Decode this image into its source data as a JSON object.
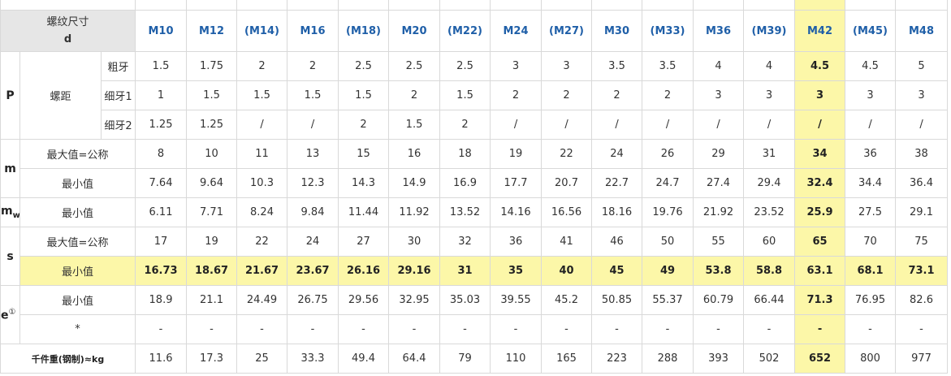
{
  "header": {
    "corner_line1": "螺纹尺寸",
    "corner_line2": "d",
    "sizes": [
      "M10",
      "M12",
      "(M14)",
      "M16",
      "(M18)",
      "M20",
      "(M22)",
      "M24",
      "(M27)",
      "M30",
      "(M33)",
      "M36",
      "(M39)",
      "M42",
      "(M45)",
      "M48"
    ]
  },
  "labels": {
    "P": "P",
    "pitch": "螺距",
    "coarse": "粗牙",
    "fine1": "细牙1",
    "fine2": "细牙2",
    "m": "m",
    "mw_main": "m",
    "mw_sub": "w",
    "s": "s",
    "e_main": "e",
    "e_sup": "①",
    "max_nominal": "最大值=公称",
    "min": "最小值",
    "star": "*",
    "weight": "千件重(钢制)≈kg"
  },
  "rows": {
    "coarse": [
      "1.5",
      "1.75",
      "2",
      "2",
      "2.5",
      "2.5",
      "2.5",
      "3",
      "3",
      "3.5",
      "3.5",
      "4",
      "4",
      "4.5",
      "4.5",
      "5"
    ],
    "fine1": [
      "1",
      "1.5",
      "1.5",
      "1.5",
      "1.5",
      "2",
      "1.5",
      "2",
      "2",
      "2",
      "2",
      "3",
      "3",
      "3",
      "3",
      "3"
    ],
    "fine2": [
      "1.25",
      "1.25",
      "/",
      "/",
      "2",
      "1.5",
      "2",
      "/",
      "/",
      "/",
      "/",
      "/",
      "/",
      "/",
      "/",
      "/"
    ],
    "m_max": [
      "8",
      "10",
      "11",
      "13",
      "15",
      "16",
      "18",
      "19",
      "22",
      "24",
      "26",
      "29",
      "31",
      "34",
      "36",
      "38"
    ],
    "m_min": [
      "7.64",
      "9.64",
      "10.3",
      "12.3",
      "14.3",
      "14.9",
      "16.9",
      "17.7",
      "20.7",
      "22.7",
      "24.7",
      "27.4",
      "29.4",
      "32.4",
      "34.4",
      "36.4"
    ],
    "mw_min": [
      "6.11",
      "7.71",
      "8.24",
      "9.84",
      "11.44",
      "11.92",
      "13.52",
      "14.16",
      "16.56",
      "18.16",
      "19.76",
      "21.92",
      "23.52",
      "25.9",
      "27.5",
      "29.1"
    ],
    "s_max": [
      "17",
      "19",
      "22",
      "24",
      "27",
      "30",
      "32",
      "36",
      "41",
      "46",
      "50",
      "55",
      "60",
      "65",
      "70",
      "75"
    ],
    "s_min": [
      "16.73",
      "18.67",
      "21.67",
      "23.67",
      "26.16",
      "29.16",
      "31",
      "35",
      "40",
      "45",
      "49",
      "53.8",
      "58.8",
      "63.1",
      "68.1",
      "73.1"
    ],
    "e_min": [
      "18.9",
      "21.1",
      "24.49",
      "26.75",
      "29.56",
      "32.95",
      "35.03",
      "39.55",
      "45.2",
      "50.85",
      "55.37",
      "60.79",
      "66.44",
      "71.3",
      "76.95",
      "82.6"
    ],
    "star": [
      "-",
      "-",
      "-",
      "-",
      "-",
      "-",
      "-",
      "-",
      "-",
      "-",
      "-",
      "-",
      "-",
      "-",
      "-",
      "-"
    ],
    "weight": [
      "11.6",
      "17.3",
      "25",
      "33.3",
      "49.4",
      "64.4",
      "79",
      "110",
      "165",
      "223",
      "288",
      "393",
      "502",
      "652",
      "800",
      "977"
    ]
  },
  "colors": {
    "highlight": "#fcf7a8",
    "header_bg": "#e6e6e6",
    "size_text": "#1f5fa8",
    "border": "#d9d9d9"
  }
}
